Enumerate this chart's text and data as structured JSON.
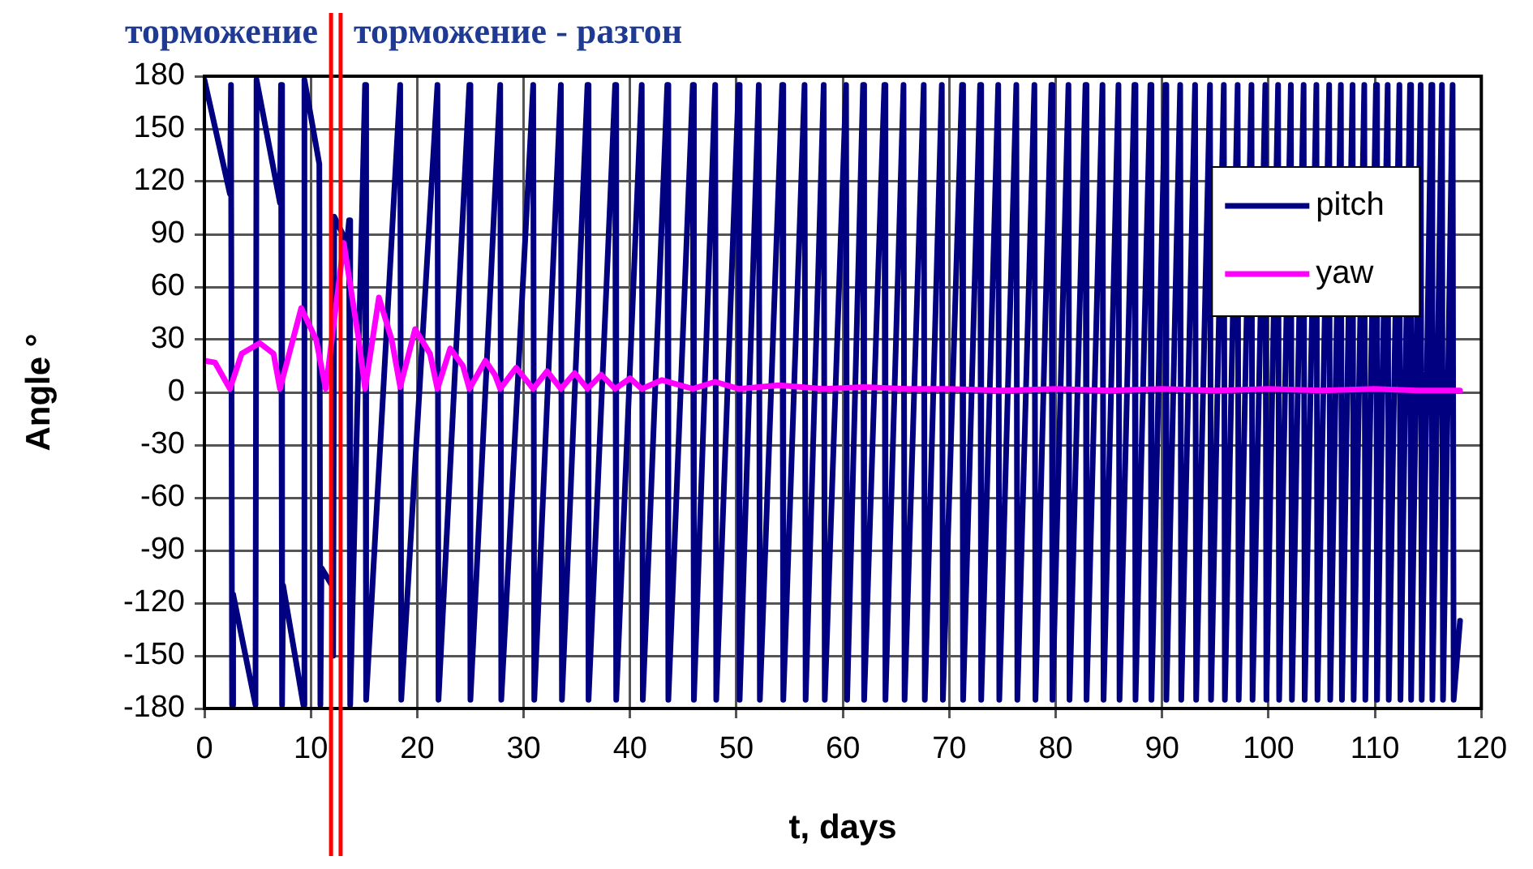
{
  "chart_data": {
    "type": "line",
    "xlabel": "t, days",
    "ylabel": "Angle °",
    "annotations": [
      "торможение",
      "торможение - разгон"
    ],
    "xlim": [
      0,
      120
    ],
    "xticks": [
      0,
      10,
      20,
      30,
      40,
      50,
      60,
      70,
      80,
      90,
      100,
      110,
      120
    ],
    "ylim": [
      -180,
      180
    ],
    "yticks": [
      -180,
      -150,
      -120,
      -90,
      -60,
      -30,
      0,
      30,
      60,
      90,
      120,
      150,
      180
    ],
    "grid": true,
    "legend": "top right",
    "line_style": "solid",
    "marker": "none",
    "ref_lines": [
      {
        "axis": "x",
        "value": 11.9,
        "color": "#ff0000"
      },
      {
        "axis": "x",
        "value": 12.8,
        "color": "#ff0000"
      }
    ],
    "series": [
      {
        "name": "pitch",
        "color": "#000080",
        "x": [
          0,
          2.4,
          2.5,
          2.6,
          2.7,
          4.8,
          4.9,
          7.1,
          7.2,
          7.3,
          7.4,
          9.3,
          9.4,
          10.8,
          10.9,
          11.0,
          12.0,
          12.1,
          12.2,
          13.4,
          13.6,
          13.7,
          15.1,
          15.2,
          18.4,
          18.5,
          21.9,
          22.0,
          24.9,
          25.0,
          27.8,
          27.9,
          30.9,
          31.0,
          33.5,
          33.6,
          36.0,
          36.1,
          38.6,
          38.7,
          41.1,
          41.2,
          43.5,
          43.6,
          45.9,
          46.0,
          48.0,
          48.1,
          50.2,
          50.3,
          52.1,
          52.2,
          54.3,
          54.4,
          56.4,
          56.5,
          58.2,
          58.3,
          60.3,
          60.4,
          61.9,
          62.0,
          63.9,
          64.0,
          65.7,
          65.8,
          67.6,
          67.7,
          69.3,
          69.4,
          71.2,
          71.3,
          72.9,
          73.0,
          74.6,
          74.7,
          76.3,
          76.4,
          78.0,
          78.1,
          79.6,
          79.7,
          81.2,
          81.3,
          82.8,
          82.9,
          84.4,
          84.5,
          85.9,
          86.0,
          87.4,
          87.5,
          88.9,
          89.0,
          90.3,
          90.4,
          91.7,
          91.8,
          93.1,
          93.2,
          94.5,
          94.6,
          95.8,
          95.9,
          97.1,
          97.2,
          98.4,
          98.5,
          99.7,
          99.8,
          100.9,
          101.0,
          102.1,
          102.2,
          103.3,
          103.4,
          104.5,
          104.6,
          105.7,
          105.8,
          106.8,
          106.9,
          107.9,
          108.0,
          109.0,
          109.1,
          110.1,
          110.2,
          111.2,
          111.3,
          112.3,
          112.4,
          113.3,
          113.4,
          114.3,
          114.4,
          115.3,
          115.4,
          116.3,
          116.4,
          117.3,
          117.4,
          118
        ],
        "values": [
          178,
          113,
          175,
          -178,
          -115,
          -178,
          178,
          108,
          175,
          -178,
          -110,
          -178,
          178,
          130,
          -178,
          -100,
          -110,
          -150,
          100,
          85,
          98,
          -178,
          175,
          -175,
          175,
          -175,
          175,
          -175,
          175,
          -175,
          175,
          -175,
          175,
          -175,
          175,
          -175,
          175,
          -175,
          175,
          -175,
          175,
          -175,
          175,
          -175,
          175,
          -175,
          175,
          -175,
          175,
          -175,
          175,
          -175,
          175,
          -175,
          175,
          -175,
          175,
          -175,
          175,
          -175,
          175,
          -175,
          175,
          -175,
          175,
          -175,
          175,
          -175,
          175,
          -175,
          175,
          -175,
          175,
          -175,
          175,
          -175,
          175,
          -175,
          175,
          -175,
          175,
          -175,
          175,
          -175,
          175,
          -175,
          175,
          -175,
          175,
          -175,
          175,
          -175,
          175,
          -175,
          175,
          -175,
          175,
          -175,
          175,
          -175,
          175,
          -175,
          175,
          -175,
          175,
          -175,
          175,
          -175,
          175,
          -175,
          175,
          -175,
          175,
          -175,
          175,
          -175,
          175,
          -175,
          175,
          -175,
          175,
          -175,
          175,
          -175,
          175,
          -175,
          175,
          -175,
          175,
          -175,
          175,
          -175,
          175,
          -175,
          175,
          -175,
          175,
          -175,
          175,
          -175,
          175,
          -175,
          -130
        ]
      },
      {
        "name": "yaw",
        "color": "#ff00ff",
        "x": [
          0,
          1,
          2.4,
          3.5,
          5.2,
          6.5,
          7.1,
          9.1,
          10.5,
          11.4,
          13.1,
          14.5,
          15.1,
          16.4,
          17.6,
          18.4,
          19.8,
          21.2,
          21.9,
          23.1,
          24.3,
          24.9,
          26.4,
          27.3,
          27.8,
          29.3,
          30.9,
          32.2,
          33.5,
          34.8,
          36.0,
          37.3,
          38.6,
          40,
          41.1,
          43,
          45.9,
          48,
          50.2,
          54,
          58.2,
          62,
          66,
          70,
          75,
          80,
          85,
          90,
          95,
          100,
          105,
          110,
          114,
          118
        ],
        "values": [
          18,
          17,
          2,
          22,
          28,
          22,
          2,
          48,
          30,
          2,
          85,
          30,
          2,
          54,
          30,
          3,
          36,
          22,
          2,
          25,
          15,
          2,
          18,
          10,
          2,
          14,
          2,
          12,
          2,
          11,
          2,
          10,
          2,
          8,
          2,
          7,
          2,
          6,
          2,
          4,
          2,
          3,
          2,
          2,
          1,
          2,
          1,
          2,
          1,
          2,
          1,
          2,
          1,
          1
        ]
      }
    ]
  }
}
